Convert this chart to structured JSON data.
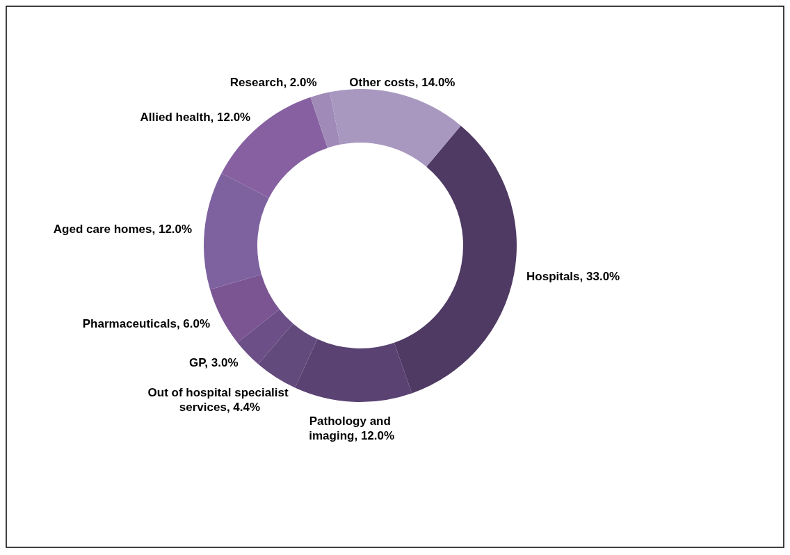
{
  "chart_data": {
    "type": "donut",
    "categories": [
      "Hospitals",
      "Pathology and imaging",
      "Out of hospital specialist services",
      "GP",
      "Pharmaceuticals",
      "Aged care homes",
      "Allied health",
      "Research",
      "Other costs"
    ],
    "values": [
      33,
      12,
      4.4,
      3,
      6,
      12,
      12,
      2,
      14
    ],
    "value_labels": [
      "33.0%",
      "12.0%",
      "4.4%",
      "3.0%",
      "6.0%",
      "12.0%",
      "12.0%",
      "2.0%",
      "14.0%"
    ],
    "colors": [
      "#4f3a63",
      "#5a4272",
      "#634a7d",
      "#6b4f86",
      "#7a5592",
      "#7e62a0",
      "#8660a0",
      "#a08ab8",
      "#a898bf"
    ]
  }
}
